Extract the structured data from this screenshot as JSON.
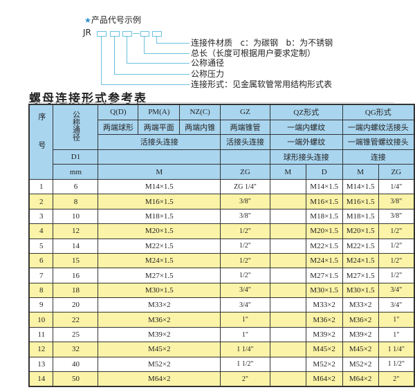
{
  "diagram": {
    "title": "产品代号示例",
    "code_prefix": "JR",
    "labels": [
      "连接件材质   c：为碳钢   b：为不锈钢",
      "总长（长度可根据用户要求定制）",
      "公称通径",
      "公称压力",
      "连接形式：见金属软管常用结构形式表"
    ],
    "accent_color": "#2a8fd0"
  },
  "table_title": "螺母连接形式参考表",
  "header": {
    "serial": "序号",
    "nominal": "公称通径",
    "r1": [
      "Q(D)",
      "PM(A)",
      "NZ(C)",
      "GZ",
      "QZ形式",
      "QG形式"
    ],
    "r2": [
      "两端球形",
      "两端平面",
      "两端内锥",
      "两端锥管",
      "一端内螺纹",
      "一端内螺纹活接头"
    ],
    "r3": [
      "活接头连接",
      "活接头连接",
      "一端外螺纹",
      "一端锥管螺纹接头"
    ],
    "r4": [
      "D1",
      "",
      "",
      "球形接头连接",
      "连接"
    ],
    "r5": [
      "mm",
      "M",
      "ZG",
      "M",
      "D",
      "M",
      "ZG"
    ]
  },
  "colors": {
    "header_bg": "#a9d5ef",
    "alt_row_bg": "#fbf3a7"
  },
  "rows": [
    {
      "no": "1",
      "d": "6",
      "m": "M14×1.5",
      "zg": "ZG 1/4\"",
      "qz_m": "",
      "qz_d": "M14×1.5",
      "qg_m": "M14×1.5",
      "qg_zg": "1/4\""
    },
    {
      "no": "2",
      "d": "8",
      "m": "M16×1.5",
      "zg": "3/8\"",
      "qz_m": "",
      "qz_d": "M16×1.5",
      "qg_m": "M16×1.5",
      "qg_zg": "3/8\""
    },
    {
      "no": "3",
      "d": "10",
      "m": "M18×1.5",
      "zg": "3/8\"",
      "qz_m": "",
      "qz_d": "M18×1.5",
      "qg_m": "M18×1.5",
      "qg_zg": "3/8\""
    },
    {
      "no": "4",
      "d": "12",
      "m": "M20×1.5",
      "zg": "1/2\"",
      "qz_m": "",
      "qz_d": "M20×1.5",
      "qg_m": "M20×1.5",
      "qg_zg": "1/2\""
    },
    {
      "no": "5",
      "d": "14",
      "m": "M22×1.5",
      "zg": "1/2\"",
      "qz_m": "",
      "qz_d": "M22×1.5",
      "qg_m": "M22×1.5",
      "qg_zg": "1/2\""
    },
    {
      "no": "6",
      "d": "15",
      "m": "M24×1.5",
      "zg": "1/2\"",
      "qz_m": "",
      "qz_d": "M24×1.5",
      "qg_m": "M24×1.5",
      "qg_zg": "1/2\""
    },
    {
      "no": "7",
      "d": "16",
      "m": "M27×1.5",
      "zg": "1/2\"",
      "qz_m": "",
      "qz_d": "M27×1.5",
      "qg_m": "M27×1.5",
      "qg_zg": "1/2\""
    },
    {
      "no": "8",
      "d": "18",
      "m": "M30×1.5",
      "zg": "3/4\"",
      "qz_m": "",
      "qz_d": "M30×1.5",
      "qg_m": "M30×1.5",
      "qg_zg": "3/4\""
    },
    {
      "no": "9",
      "d": "20",
      "m": "M33×2",
      "zg": "3/4\"",
      "qz_m": "",
      "qz_d": "M33×2",
      "qg_m": "M33×2",
      "qg_zg": "3/4\""
    },
    {
      "no": "10",
      "d": "22",
      "m": "M36×2",
      "zg": "1\"",
      "qz_m": "",
      "qz_d": "M36×2",
      "qg_m": "M36×2",
      "qg_zg": "1\""
    },
    {
      "no": "11",
      "d": "25",
      "m": "M39×2",
      "zg": "1\"",
      "qz_m": "",
      "qz_d": "M39×2",
      "qg_m": "M39×2",
      "qg_zg": "1\""
    },
    {
      "no": "12",
      "d": "32",
      "m": "M45×2",
      "zg": "1 1/4\"",
      "qz_m": "",
      "qz_d": "M45×2",
      "qg_m": "M45×2",
      "qg_zg": "1 1/4\""
    },
    {
      "no": "13",
      "d": "40",
      "m": "M52×2",
      "zg": "1 1/2\"",
      "qz_m": "",
      "qz_d": "M52×2",
      "qg_m": "M52×2",
      "qg_zg": "1 1/2\""
    },
    {
      "no": "14",
      "d": "50",
      "m": "M64×2",
      "zg": "2\"",
      "qz_m": "",
      "qz_d": "M64×2",
      "qg_m": "M64×2",
      "qg_zg": "2\""
    }
  ]
}
